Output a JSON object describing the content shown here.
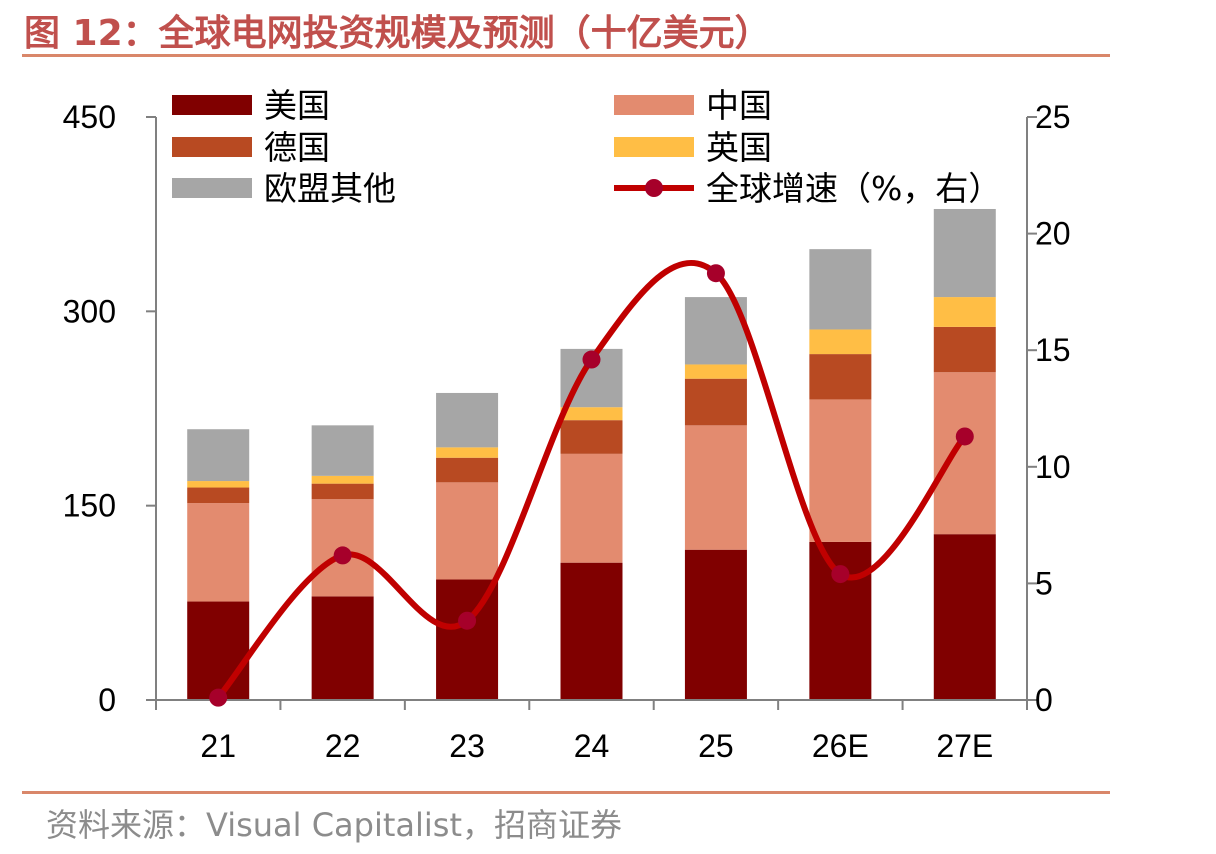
{
  "figure": {
    "title": "图 12：全球电网投资规模及预测（十亿美元）",
    "source": "资料来源：Visual Capitalist，招商证券"
  },
  "colors": {
    "us": "#800000",
    "china": "#E38B6F",
    "germany": "#B84A22",
    "uk": "#FFBE45",
    "eu_other": "#A6A6A6",
    "growth": "#C00000",
    "growth_marker": "#A6002A",
    "rule": "#D9876A",
    "axis": "#808080"
  },
  "chart_data": {
    "type": "bar",
    "stacked": true,
    "categories": [
      "21",
      "22",
      "23",
      "24",
      "25",
      "26E",
      "27E"
    ],
    "series": [
      {
        "name": "美国",
        "key": "us",
        "values": [
          76,
          80,
          93,
          106,
          116,
          122,
          128
        ]
      },
      {
        "name": "中国",
        "key": "china",
        "values": [
          76,
          75,
          75,
          84,
          96,
          110,
          125
        ]
      },
      {
        "name": "德国",
        "key": "germany",
        "values": [
          12,
          12,
          19,
          26,
          36,
          35,
          35
        ]
      },
      {
        "name": "英国",
        "key": "uk",
        "values": [
          5,
          6,
          8,
          10,
          11,
          19,
          23
        ]
      },
      {
        "name": "欧盟其他",
        "key": "eu_other",
        "values": [
          40,
          39,
          42,
          45,
          52,
          62,
          68
        ]
      }
    ],
    "line_series": {
      "name": "全球增速（%，右）",
      "axis": "right",
      "values": [
        0.1,
        6.2,
        3.4,
        14.6,
        18.3,
        5.4,
        11.3
      ]
    },
    "y_left": {
      "min": 0,
      "max": 450,
      "ticks": [
        0,
        150,
        300,
        450
      ]
    },
    "y_right": {
      "min": 0,
      "max": 25,
      "ticks": [
        0,
        5,
        10,
        15,
        20,
        25
      ]
    },
    "legend_position": "top",
    "grid": false
  }
}
